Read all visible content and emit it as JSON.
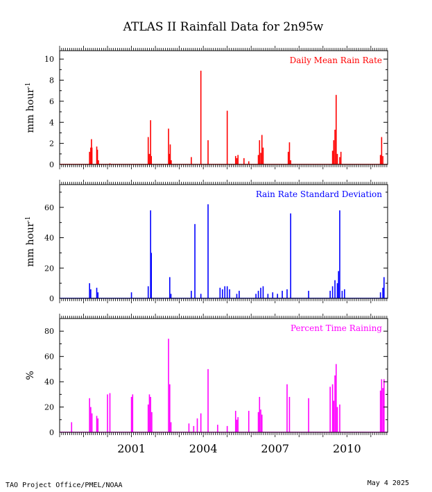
{
  "title": "ATLAS II Rainfall Data for 2n95w",
  "footer": {
    "left": "TAO Project Office/PMEL/NOAA",
    "right": "May  4 2025"
  },
  "x_axis": {
    "range": [
      1998.0,
      2011.7
    ],
    "tick_labels": [
      "2001",
      "2004",
      "2007",
      "2010"
    ],
    "tick_positions": [
      2001.0,
      2004.0,
      2007.0,
      2010.0
    ]
  },
  "chart_data": [
    {
      "type": "bar",
      "label": "Daily Mean Rain Rate",
      "color": "#ff0000",
      "ylabel": "mm hour",
      "ylabel_sup": "-1",
      "ylim": [
        0,
        10.8
      ],
      "yticks": [
        0,
        2,
        4,
        6,
        8,
        10
      ],
      "x": [
        1999.25,
        1999.3,
        1999.33,
        1999.35,
        1999.55,
        1999.58,
        1999.62,
        2000.1,
        2001.7,
        2001.75,
        2001.8,
        2001.83,
        2002.55,
        2002.58,
        2002.62,
        2002.66,
        2003.5,
        2003.9,
        2004.2,
        2005.0,
        2005.35,
        2005.4,
        2005.45,
        2005.7,
        2005.9,
        2006.3,
        2006.35,
        2006.4,
        2006.45,
        2006.5,
        2007.55,
        2007.6,
        2007.65,
        2009.4,
        2009.45,
        2009.5,
        2009.55,
        2009.6,
        2009.7,
        2009.75,
        2011.4,
        2011.45,
        2011.5
      ],
      "values": [
        1.2,
        1.6,
        2.4,
        1.6,
        1.7,
        1.4,
        0.4,
        0.1,
        2.6,
        1.0,
        4.2,
        0.8,
        3.4,
        1.0,
        1.9,
        0.4,
        0.7,
        8.9,
        2.3,
        5.1,
        0.8,
        0.6,
        0.9,
        0.6,
        0.3,
        0.9,
        2.3,
        1.1,
        2.8,
        1.6,
        1.2,
        2.1,
        0.4,
        1.3,
        2.3,
        3.3,
        6.6,
        1.0,
        0.7,
        1.2,
        0.9,
        2.6,
        0.8
      ]
    },
    {
      "type": "bar",
      "label": "Rain Rate Standard Deviation",
      "color": "#0000ff",
      "ylabel": "mm hour",
      "ylabel_sup": "-1",
      "ylim": [
        0,
        75
      ],
      "yticks": [
        0,
        20,
        40,
        60
      ],
      "x": [
        1999.25,
        1999.3,
        1999.55,
        1999.6,
        2001.0,
        2001.7,
        2001.8,
        2001.83,
        2002.6,
        2002.65,
        2003.5,
        2003.65,
        2003.9,
        2004.2,
        2004.7,
        2004.8,
        2004.9,
        2005.0,
        2005.1,
        2005.4,
        2005.5,
        2006.2,
        2006.3,
        2006.4,
        2006.5,
        2006.7,
        2006.9,
        2007.1,
        2007.3,
        2007.5,
        2007.65,
        2008.4,
        2009.3,
        2009.4,
        2009.5,
        2009.6,
        2009.65,
        2009.7,
        2009.8,
        2009.9,
        2011.4,
        2011.5,
        2011.55
      ],
      "values": [
        10,
        6,
        7,
        4,
        4,
        8,
        58,
        30,
        14,
        3,
        5,
        49,
        3,
        62,
        7,
        6,
        8,
        8,
        6,
        3,
        5,
        3,
        5,
        7,
        8,
        3,
        4,
        3,
        5,
        6,
        56,
        5,
        5,
        8,
        12,
        10,
        18,
        58,
        5,
        6,
        4,
        7,
        14
      ]
    },
    {
      "type": "bar",
      "label": "Percent Time Raining",
      "color": "#ff00ff",
      "ylabel": "%",
      "ylabel_sup": "",
      "ylim": [
        0,
        90
      ],
      "yticks": [
        0,
        20,
        40,
        60,
        80
      ],
      "x": [
        1998.5,
        1999.25,
        1999.3,
        1999.35,
        1999.55,
        1999.6,
        2000.0,
        2000.1,
        2001.0,
        2001.05,
        2001.7,
        2001.75,
        2001.8,
        2001.85,
        2002.55,
        2002.6,
        2002.65,
        2003.4,
        2003.6,
        2003.75,
        2003.9,
        2004.2,
        2004.6,
        2005.0,
        2005.35,
        2005.4,
        2005.45,
        2005.9,
        2006.3,
        2006.35,
        2006.4,
        2006.45,
        2007.5,
        2007.6,
        2008.4,
        2009.3,
        2009.4,
        2009.45,
        2009.5,
        2009.55,
        2009.6,
        2009.7,
        2011.4,
        2011.45,
        2011.5,
        2011.55
      ],
      "values": [
        8,
        27,
        20,
        15,
        13,
        11,
        30,
        31,
        28,
        30,
        22,
        30,
        28,
        16,
        74,
        38,
        8,
        7,
        5,
        11,
        15,
        50,
        6,
        5,
        17,
        10,
        12,
        17,
        16,
        28,
        18,
        14,
        38,
        28,
        27,
        36,
        38,
        25,
        45,
        54,
        20,
        22,
        33,
        42,
        35,
        42
      ]
    }
  ]
}
